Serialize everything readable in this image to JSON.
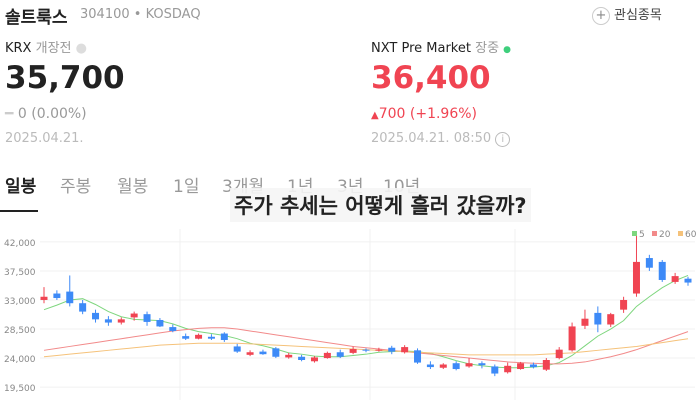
{
  "header": {
    "name": "솔트룩스",
    "code": "304100",
    "market": "KOSDAQ",
    "watch_button": "관심종목"
  },
  "krx": {
    "label": "KRX",
    "status": "개장전",
    "price": "35,700",
    "change": "0 (0.00%)",
    "date": "2025.04.21."
  },
  "nxt": {
    "label": "NXT Pre Market",
    "status": "장중",
    "price": "36,400",
    "change": "700 (+1.96%)",
    "date": "2025.04.21. 08:50"
  },
  "tabs": [
    "일봉",
    "주봉",
    "월봉",
    "1일",
    "3개월",
    "1년",
    "3년",
    "10년"
  ],
  "overlay": "주가 추세는 어떻게 흘러 갔을까?",
  "chart_data": {
    "type": "candlestick",
    "open": [
      33000,
      34000,
      34300,
      32500,
      31000,
      30000,
      29500,
      30300,
      30800,
      29900,
      28800,
      27400,
      27000,
      27300,
      27800,
      25800,
      24500,
      25000,
      25500,
      24100,
      24200,
      23500,
      24000,
      24900,
      24800,
      25300,
      25200,
      25600,
      24900,
      25200,
      23000,
      22500,
      23200,
      22700,
      23200,
      22700,
      21800,
      22300,
      23000,
      22200,
      24000,
      25200,
      29000,
      31000,
      29200,
      31500,
      34000,
      39500,
      38900,
      35800,
      36300
    ],
    "high": [
      35000,
      34500,
      36800,
      33000,
      31500,
      30500,
      30300,
      31200,
      31200,
      30200,
      29200,
      27800,
      27800,
      27700,
      28000,
      26200,
      25200,
      25300,
      25700,
      24800,
      24500,
      24300,
      25000,
      25300,
      25800,
      25500,
      25600,
      25900,
      26000,
      25500,
      23500,
      23200,
      23500,
      24000,
      23500,
      23000,
      23300,
      23400,
      23300,
      24000,
      25700,
      29500,
      31500,
      32000,
      31000,
      33500,
      43500,
      40000,
      39200,
      37200,
      36600
    ],
    "low": [
      32500,
      33000,
      32000,
      30800,
      29500,
      29000,
      29200,
      29800,
      29000,
      28800,
      28000,
      26800,
      26900,
      26800,
      26500,
      24800,
      24300,
      24500,
      24000,
      23900,
      23500,
      23300,
      23900,
      24000,
      24600,
      24900,
      25000,
      24600,
      24700,
      23100,
      22300,
      22300,
      22100,
      22500,
      22400,
      21200,
      21600,
      22200,
      22400,
      22000,
      23800,
      25000,
      28500,
      28000,
      28800,
      31000,
      33500,
      37500,
      35800,
      35500,
      35200
    ],
    "close": [
      33500,
      33300,
      32500,
      31200,
      30000,
      29500,
      30000,
      30900,
      29600,
      28900,
      28200,
      27000,
      27600,
      27000,
      26800,
      25000,
      24900,
      24600,
      24200,
      24500,
      23700,
      24100,
      24800,
      24200,
      25400,
      25200,
      25300,
      25000,
      25700,
      23300,
      22600,
      23000,
      22300,
      23200,
      22900,
      21600,
      22800,
      23200,
      22600,
      23700,
      25300,
      28900,
      30100,
      29200,
      30800,
      33000,
      38900,
      38000,
      36100,
      36700,
      35700
    ],
    "series": [
      {
        "name": "5",
        "color": "#7ed67e",
        "values": [
          31500,
          32200,
          33000,
          33200,
          32300,
          31200,
          30400,
          30000,
          29900,
          29800,
          29300,
          28600,
          28100,
          27800,
          27500,
          27000,
          26300,
          25900,
          25400,
          24800,
          24600,
          24300,
          24200,
          24200,
          24400,
          24600,
          24900,
          25000,
          25100,
          25000,
          24700,
          24200,
          23600,
          23100,
          22800,
          22600,
          22500,
          22500,
          22600,
          22800,
          23300,
          24400,
          25900,
          27400,
          28500,
          29800,
          32000,
          33500,
          34900,
          36000,
          36800
        ]
      },
      {
        "name": "20",
        "color": "#f28a8a",
        "values": [
          25200,
          25500,
          25800,
          26100,
          26400,
          26700,
          27000,
          27300,
          27600,
          27900,
          28200,
          28400,
          28600,
          28700,
          28700,
          28500,
          28200,
          27900,
          27600,
          27300,
          27000,
          26700,
          26400,
          26100,
          25800,
          25600,
          25400,
          25200,
          25000,
          24800,
          24600,
          24400,
          24200,
          24000,
          23800,
          23600,
          23400,
          23300,
          23200,
          23100,
          23100,
          23200,
          23400,
          23800,
          24200,
          24700,
          25300,
          26000,
          26700,
          27400,
          28100
        ]
      },
      {
        "name": "60",
        "color": "#f5c27a",
        "values": [
          24200,
          24400,
          24600,
          24800,
          25000,
          25200,
          25400,
          25600,
          25800,
          26000,
          26100,
          26200,
          26300,
          26300,
          26300,
          26300,
          26200,
          26100,
          26000,
          25900,
          25800,
          25700,
          25600,
          25500,
          25400,
          25300,
          25200,
          25100,
          25000,
          24900,
          24800,
          24700,
          24600,
          24500,
          24500,
          24500,
          24500,
          24500,
          24500,
          24600,
          24700,
          24800,
          25000,
          25200,
          25400,
          25600,
          25800,
          26100,
          26400,
          26700,
          27000
        ]
      }
    ],
    "up_color": "#f04452",
    "down_color": "#3d8af7",
    "ylim": [
      17500,
      44000
    ],
    "yticks": [
      {
        "value": 19500,
        "label": "19,500"
      },
      {
        "value": 24000,
        "label": "24,000"
      },
      {
        "value": 28500,
        "label": "28,500"
      },
      {
        "value": 33000,
        "label": "33,000"
      },
      {
        "value": 37500,
        "label": "37,500"
      },
      {
        "value": 42000,
        "label": "42,000"
      }
    ],
    "grid": true
  }
}
